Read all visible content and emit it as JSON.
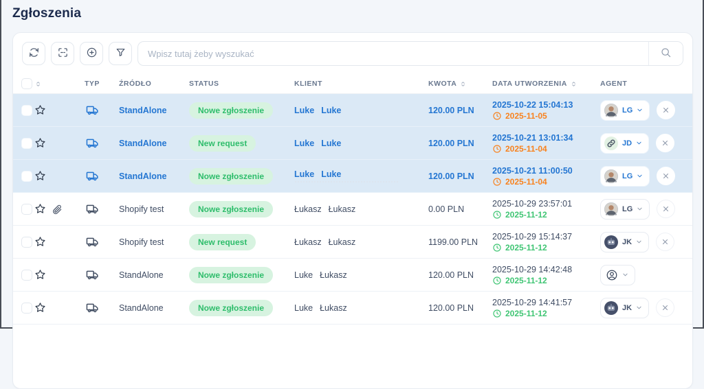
{
  "page": {
    "title": "Zgłoszenia"
  },
  "toolbar": {
    "buttons": [
      {
        "icon": "refresh-icon"
      },
      {
        "icon": "scan-icon"
      },
      {
        "icon": "add-icon"
      },
      {
        "icon": "filter-icon"
      }
    ],
    "search": {
      "placeholder": "Wpisz tutaj żeby wyszukać",
      "value": "",
      "button_icon": "search-icon"
    }
  },
  "colors": {
    "accent_blue": "#2476d2",
    "overdue_orange": "#f8821e",
    "ontime_green": "#3fc573",
    "status_pill_bg": "#d7f3e0",
    "status_pill_text": "#2ebd6b",
    "selected_row_bg": "#dbe9f6"
  },
  "table": {
    "columns": [
      {
        "label": "",
        "checkbox": true
      },
      {
        "label": "",
        "sort": true
      },
      {
        "label": "TYP"
      },
      {
        "label": "ŹRÓDŁO"
      },
      {
        "label": "STATUS"
      },
      {
        "label": "KLIENT"
      },
      {
        "label": "KWOTA",
        "sort": true
      },
      {
        "label": "DATA UTWORZENIA",
        "sort": true
      },
      {
        "label": "AGENT"
      }
    ],
    "rows": [
      {
        "selected": true,
        "attachment": false,
        "type_icon": "truck-icon",
        "source": "StandAlone",
        "status": "Nowe zgłoszenie",
        "client_first": "Luke",
        "client_last": "Luke",
        "ghost_line": false,
        "amount": "120.00 PLN",
        "created": "2025-10-22 15:04:13",
        "due": "2025-11-05",
        "due_state": "overdue",
        "agent": {
          "initials": "LG",
          "avatar": "photo-avatar"
        },
        "closable": true
      },
      {
        "selected": true,
        "attachment": false,
        "type_icon": "truck-icon",
        "source": "StandAlone",
        "status": "New request",
        "client_first": "Luke",
        "client_last": "Luke",
        "ghost_line": false,
        "amount": "120.00 PLN",
        "created": "2025-10-21 13:01:34",
        "due": "2025-11-04",
        "due_state": "overdue",
        "agent": {
          "initials": "JD",
          "avatar": "link-avatar"
        },
        "closable": true
      },
      {
        "selected": true,
        "attachment": false,
        "type_icon": "truck-icon",
        "source": "StandAlone",
        "status": "Nowe zgłoszenie",
        "client_first": "Luke",
        "client_last": "Luke",
        "ghost_line": true,
        "amount": "120.00 PLN",
        "created": "2025-10-21 11:00:50",
        "due": "2025-11-04",
        "due_state": "overdue",
        "agent": {
          "initials": "LG",
          "avatar": "photo-avatar"
        },
        "closable": true
      },
      {
        "selected": false,
        "attachment": true,
        "type_icon": "truck-icon",
        "source": "Shopify test",
        "status": "Nowe zgłoszenie",
        "client_first": "Łukasz",
        "client_last": "Łukasz",
        "ghost_line": false,
        "amount": "0.00 PLN",
        "created": "2025-10-29 23:57:01",
        "due": "2025-11-12",
        "due_state": "ontime",
        "agent": {
          "initials": "LG",
          "avatar": "photo-avatar"
        },
        "closable": true
      },
      {
        "selected": false,
        "attachment": false,
        "type_icon": "truck-icon",
        "source": "Shopify test",
        "status": "New request",
        "client_first": "Łukasz",
        "client_last": "Łukasz",
        "ghost_line": false,
        "amount": "1199.00 PLN",
        "created": "2025-10-29 15:14:37",
        "due": "2025-11-12",
        "due_state": "ontime",
        "agent": {
          "initials": "JK",
          "avatar": "robot-avatar"
        },
        "closable": true
      },
      {
        "selected": false,
        "attachment": false,
        "type_icon": "truck-icon",
        "source": "StandAlone",
        "status": "Nowe zgłoszenie",
        "client_first": "Luke",
        "client_last": "Łukasz",
        "ghost_line": false,
        "amount": "120.00 PLN",
        "created": "2025-10-29 14:42:48",
        "due": "2025-11-12",
        "due_state": "ontime",
        "agent": {
          "initials": "",
          "avatar": "person-avatar"
        },
        "closable": false
      },
      {
        "selected": false,
        "attachment": false,
        "type_icon": "truck-icon",
        "source": "StandAlone",
        "status": "Nowe zgłoszenie",
        "client_first": "Luke",
        "client_last": "Łukasz",
        "ghost_line": false,
        "amount": "120.00 PLN",
        "created": "2025-10-29 14:41:57",
        "due": "2025-11-12",
        "due_state": "ontime",
        "agent": {
          "initials": "JK",
          "avatar": "robot-avatar"
        },
        "closable": true
      }
    ]
  }
}
